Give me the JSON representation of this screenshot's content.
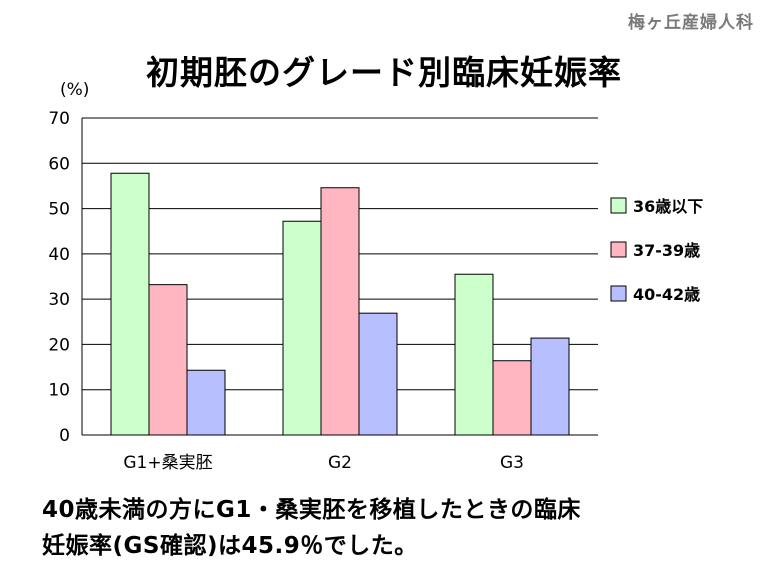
{
  "watermark": "梅ヶ丘産婦人科",
  "caption": {
    "line1": "40歳未満の方にG1・桑実胚を移植したときの臨床",
    "line2": "妊娠率(GS確認)は45.9％でした。"
  },
  "chart_data": {
    "type": "bar",
    "title": "初期胚のグレード別臨床妊娠率",
    "ylabel": "(%)",
    "xlabel": "",
    "categories": [
      "G1+桑実胚",
      "G2",
      "G3"
    ],
    "ylim": [
      0,
      70
    ],
    "yticks": [
      0,
      10,
      20,
      30,
      40,
      50,
      60,
      70
    ],
    "grid": true,
    "legend_position": "right",
    "series": [
      {
        "name": "36歳以下",
        "color": "#ccffcc",
        "values": [
          57.8,
          47.2,
          35.5
        ]
      },
      {
        "name": "37-39歳",
        "color": "#ffb6c1",
        "values": [
          33.2,
          54.6,
          16.4
        ]
      },
      {
        "name": "40-42歳",
        "color": "#b8bfff",
        "values": [
          14.3,
          26.9,
          21.4
        ]
      }
    ]
  }
}
